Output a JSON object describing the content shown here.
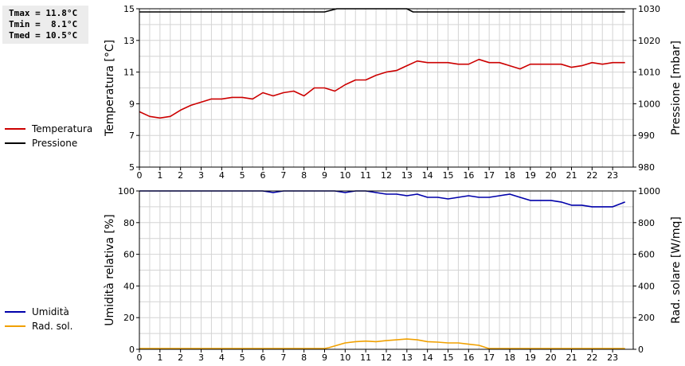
{
  "stats": {
    "tmax": "Tmax = 11.8°C",
    "tmin": "Tmin =  8.1°C",
    "tmed": "Tmed = 10.5°C"
  },
  "chart_data": [
    {
      "type": "line",
      "xlabel": "",
      "ylabel": "Temperatura [°C]",
      "y2label": "Pressione [mbar]",
      "xlim": [
        0,
        24
      ],
      "ylim": [
        5,
        15
      ],
      "y2lim": [
        980,
        1030
      ],
      "x_ticks": [
        0,
        1,
        2,
        3,
        4,
        5,
        6,
        7,
        8,
        9,
        10,
        11,
        12,
        13,
        14,
        15,
        16,
        17,
        18,
        19,
        20,
        21,
        22,
        23
      ],
      "y_ticks": [
        5,
        7,
        9,
        11,
        13,
        15
      ],
      "y2_ticks": [
        980,
        990,
        1000,
        1010,
        1020,
        1030
      ],
      "grid": true,
      "legend_position": "left",
      "series": [
        {
          "name": "Temperatura",
          "color": "#cc0000",
          "axis": "left",
          "x": [
            0,
            0.5,
            1,
            1.5,
            2,
            2.5,
            3,
            3.5,
            4,
            4.5,
            5,
            5.5,
            6,
            6.5,
            7,
            7.5,
            8,
            8.5,
            9,
            9.5,
            10,
            10.5,
            11,
            11.5,
            12,
            12.5,
            13,
            13.5,
            14,
            14.5,
            15,
            15.5,
            16,
            16.5,
            17,
            17.5,
            18,
            18.5,
            19,
            19.5,
            20,
            20.5,
            21,
            21.5,
            22,
            22.5,
            23,
            23.6
          ],
          "y": [
            8.5,
            8.2,
            8.1,
            8.2,
            8.6,
            8.9,
            9.1,
            9.3,
            9.3,
            9.4,
            9.4,
            9.3,
            9.7,
            9.5,
            9.7,
            9.8,
            9.5,
            10.0,
            10.0,
            9.8,
            10.2,
            10.5,
            10.5,
            10.8,
            11.0,
            11.1,
            11.4,
            11.7,
            11.6,
            11.6,
            11.6,
            11.5,
            11.5,
            11.8,
            11.6,
            11.6,
            11.4,
            11.2,
            11.5,
            11.5,
            11.5,
            11.5,
            11.3,
            11.4,
            11.6,
            11.5,
            11.6,
            11.6
          ]
        },
        {
          "name": "Pressione",
          "color": "#000000",
          "axis": "right",
          "x": [
            0,
            9,
            9.6,
            13,
            13.3,
            23.6
          ],
          "y": [
            1029,
            1029,
            1030,
            1030,
            1029,
            1029
          ]
        }
      ]
    },
    {
      "type": "line",
      "xlabel": "",
      "ylabel": "Umidità relativa [%]",
      "y2label": "Rad. solare [W/mq]",
      "xlim": [
        0,
        24
      ],
      "ylim": [
        0,
        100
      ],
      "y2lim": [
        0,
        1000
      ],
      "x_ticks": [
        0,
        1,
        2,
        3,
        4,
        5,
        6,
        7,
        8,
        9,
        10,
        11,
        12,
        13,
        14,
        15,
        16,
        17,
        18,
        19,
        20,
        21,
        22,
        23
      ],
      "y_ticks": [
        0,
        20,
        40,
        60,
        80,
        100
      ],
      "y2_ticks": [
        0,
        200,
        400,
        600,
        800,
        1000
      ],
      "grid": true,
      "legend_position": "left",
      "series": [
        {
          "name": "Umidità",
          "color": "#0000aa",
          "axis": "left",
          "x": [
            0,
            1,
            2,
            3,
            4,
            5,
            6,
            6.5,
            7,
            8,
            9,
            9.5,
            10,
            10.5,
            11,
            11.5,
            12,
            12.5,
            13,
            13.5,
            14,
            14.5,
            15,
            15.5,
            16,
            16.5,
            17,
            17.5,
            18,
            18.5,
            19,
            19.5,
            20,
            20.5,
            21,
            21.5,
            22,
            22.5,
            23,
            23.6
          ],
          "y": [
            100,
            100,
            100,
            100,
            100,
            100,
            100,
            99,
            100,
            100,
            100,
            100,
            99,
            100,
            100,
            99,
            98,
            98,
            97,
            98,
            96,
            96,
            95,
            96,
            97,
            96,
            96,
            97,
            98,
            96,
            94,
            94,
            94,
            93,
            91,
            91,
            90,
            90,
            90,
            93
          ]
        },
        {
          "name": "Rad. sol.",
          "color": "#f0a000",
          "axis": "right",
          "x": [
            0,
            1,
            2,
            3,
            4,
            5,
            6,
            7,
            8,
            9,
            9.2,
            9.6,
            10,
            10.5,
            11,
            11.5,
            12,
            12.5,
            13,
            13.5,
            14,
            14.5,
            15,
            15.5,
            16,
            16.5,
            16.9,
            17,
            18,
            19,
            20,
            21,
            22,
            23,
            23.6
          ],
          "y": [
            5,
            5,
            5,
            5,
            5,
            5,
            5,
            5,
            5,
            5,
            10,
            25,
            40,
            48,
            52,
            48,
            55,
            60,
            65,
            60,
            48,
            45,
            40,
            40,
            32,
            25,
            8,
            5,
            5,
            5,
            5,
            5,
            5,
            5,
            5
          ]
        }
      ]
    }
  ]
}
